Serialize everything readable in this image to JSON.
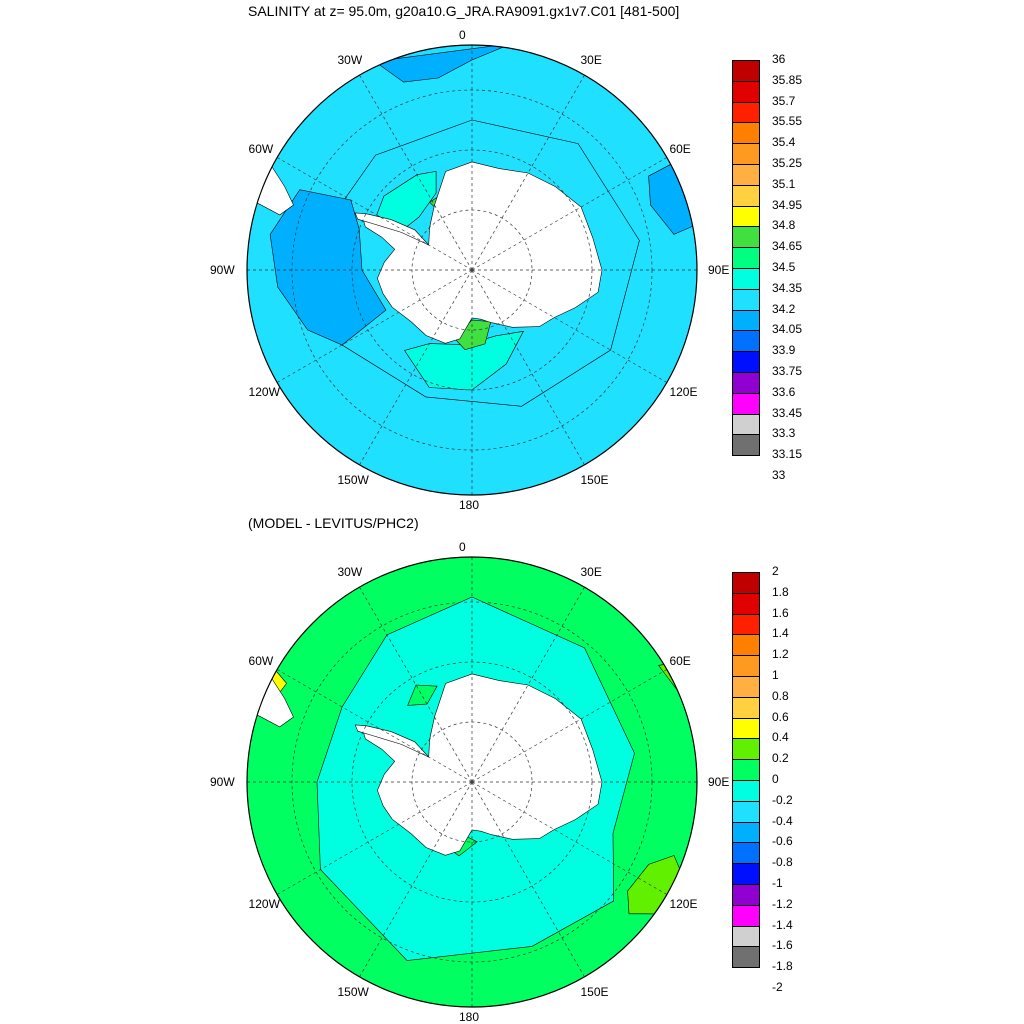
{
  "panel1": {
    "title": "SALINITY at z=  95.0m, g20a10.G_JRA.RA9091.gx1v7.C01 [481-500]",
    "lon_labels": [
      "0",
      "30E",
      "60E",
      "90E",
      "120E",
      "150E",
      "180",
      "150W",
      "120W",
      "90W",
      "60W",
      "30W"
    ],
    "colorbar": {
      "labels": [
        "36",
        "35.85",
        "35.7",
        "35.55",
        "35.4",
        "35.25",
        "35.1",
        "34.95",
        "34.8",
        "34.65",
        "34.5",
        "34.35",
        "34.2",
        "34.05",
        "33.9",
        "33.75",
        "33.6",
        "33.45",
        "33.3",
        "33.15",
        "33"
      ],
      "colors": [
        "#c00000",
        "#e00000",
        "#ff2000",
        "#ff8000",
        "#ff9a20",
        "#ffb040",
        "#ffd040",
        "#ffff00",
        "#40e040",
        "#00ff80",
        "#00ffe0",
        "#20e0ff",
        "#00b0ff",
        "#0070ff",
        "#0010ff",
        "#9000d0",
        "#ff00ff",
        "#d0d0d0",
        "#707070"
      ]
    },
    "fields": {
      "ocean_background": "#20e0ff",
      "coastal_band": "#00ffe0",
      "fresh_west": "#00b0ff",
      "shelf_weddell": "#00ffe0",
      "salty_shelf": "#40e040",
      "land": "#ffffff"
    }
  },
  "panel2": {
    "title": "(MODEL - LEVITUS/PHC2)",
    "lon_labels": [
      "0",
      "30E",
      "60E",
      "90E",
      "120E",
      "150E",
      "180",
      "150W",
      "120W",
      "90W",
      "60W",
      "30W"
    ],
    "colorbar": {
      "labels": [
        "2",
        "1.8",
        "1.6",
        "1.4",
        "1.2",
        "1",
        "0.8",
        "0.6",
        "0.4",
        "0.2",
        "0",
        "-0.2",
        "-0.4",
        "-0.6",
        "-0.8",
        "-1",
        "-1.2",
        "-1.4",
        "-1.6",
        "-1.8",
        "-2"
      ],
      "colors": [
        "#c00000",
        "#e00000",
        "#ff2000",
        "#ff8000",
        "#ff9a20",
        "#ffb040",
        "#ffd040",
        "#ffff00",
        "#60f000",
        "#00ff60",
        "#00ffe0",
        "#20e0ff",
        "#00b0ff",
        "#0070ff",
        "#0010ff",
        "#9000d0",
        "#ff00ff",
        "#d0d0d0",
        "#707070"
      ]
    },
    "fields": {
      "ocean_background": "#00ff60",
      "inner_ring": "#00ffe0",
      "positive_patch": "#60f000",
      "yellow_patch": "#ffff00",
      "land": "#ffffff"
    }
  }
}
